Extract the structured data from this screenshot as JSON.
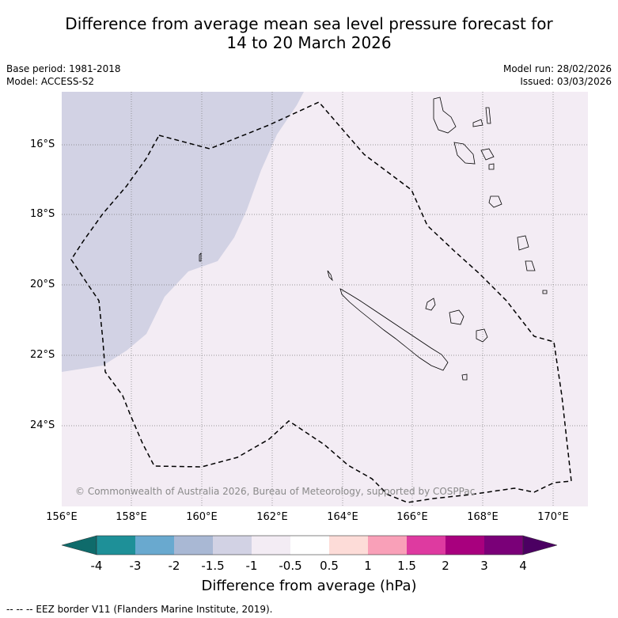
{
  "title": {
    "line1": "Difference from average mean sea level pressure forecast for",
    "line2": "14 to 20 March 2026"
  },
  "meta": {
    "base_period": "Base period: 1981-2018",
    "model": "Model: ACCESS-S2",
    "model_run": "Model run: 28/02/2026",
    "issued": "Issued: 03/03/2026"
  },
  "map": {
    "lat_labels": [
      "16°S",
      "18°S",
      "20°S",
      "22°S",
      "24°S"
    ],
    "lon_labels": [
      "156°E",
      "158°E",
      "160°E",
      "162°E",
      "164°E",
      "166°E",
      "168°E",
      "170°E"
    ],
    "copyright": "© Commonwealth of Australia 2026, Bureau of Meteorology, supported by COSPPac",
    "regions": [
      {
        "name": "anomaly-region-minus-1.5-to-minus-1",
        "color": "#d2d2e4"
      },
      {
        "name": "anomaly-region-minus-1-to-minus-0.5",
        "color": "#f3ecf4"
      }
    ]
  },
  "colorbar": {
    "title": "Difference from average (hPa)",
    "labels": [
      "-4",
      "-3",
      "-2",
      "-1.5",
      "-1",
      "-0.5",
      "0.5",
      "1",
      "1.5",
      "2",
      "3",
      "4"
    ],
    "colors": [
      "#0f6b6b",
      "#1e9098",
      "#69a9cf",
      "#a9b8d4",
      "#d2d2e4",
      "#f3ecf4",
      "#ffffff",
      "#fddcd8",
      "#f9a0b8",
      "#de3aa0",
      "#a8007e",
      "#7a0078",
      "#4b0062"
    ]
  },
  "legend_note": "--  --  -- EEZ border V11 (Flanders Marine Institute, 2019)."
}
